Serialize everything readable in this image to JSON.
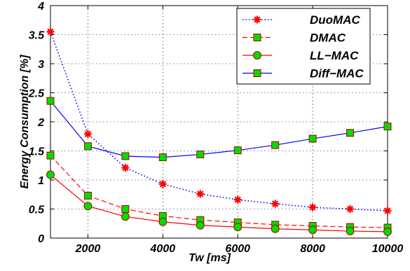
{
  "chart_data": {
    "type": "line",
    "xlabel": "Tw [ms]",
    "ylabel": "Energy Consumption [%]",
    "xlim": [
      1000,
      10000
    ],
    "ylim": [
      0,
      4
    ],
    "xticks": [
      2000,
      4000,
      6000,
      8000,
      10000
    ],
    "yticks": [
      0,
      0.5,
      1,
      1.5,
      2,
      2.5,
      3,
      3.5,
      4
    ],
    "ytick_labels": [
      "0",
      "0.5",
      "1",
      "1.5",
      "2",
      "2.5",
      "3",
      "3.5",
      "4"
    ],
    "grid": true,
    "legend_position": "top-right",
    "x": [
      1000,
      2000,
      3000,
      4000,
      5000,
      6000,
      7000,
      8000,
      9000,
      10000
    ],
    "series": [
      {
        "name": "DuoMAC",
        "color": "#0000ff",
        "marker_color": "#ff0000",
        "line_style": "dotted",
        "marker": "asterisk",
        "values": [
          3.55,
          1.79,
          1.21,
          0.93,
          0.76,
          0.66,
          0.59,
          0.53,
          0.5,
          0.47
        ]
      },
      {
        "name": "DMAC",
        "color": "#ff0000",
        "marker_color": "#00dd00",
        "line_style": "dashed",
        "marker": "square",
        "values": [
          1.42,
          0.73,
          0.5,
          0.38,
          0.31,
          0.27,
          0.23,
          0.21,
          0.19,
          0.18
        ]
      },
      {
        "name": "LL−MAC",
        "color": "#ff0000",
        "marker_color": "#00dd00",
        "line_style": "solid",
        "marker": "circle",
        "values": [
          1.09,
          0.55,
          0.37,
          0.28,
          0.22,
          0.19,
          0.16,
          0.14,
          0.12,
          0.11
        ]
      },
      {
        "name": "Diff−MAC",
        "color": "#0000ff",
        "marker_color": "#00dd00",
        "line_style": "solid",
        "marker": "square",
        "values": [
          2.36,
          1.58,
          1.41,
          1.39,
          1.44,
          1.51,
          1.6,
          1.71,
          1.81,
          1.92
        ]
      }
    ]
  }
}
